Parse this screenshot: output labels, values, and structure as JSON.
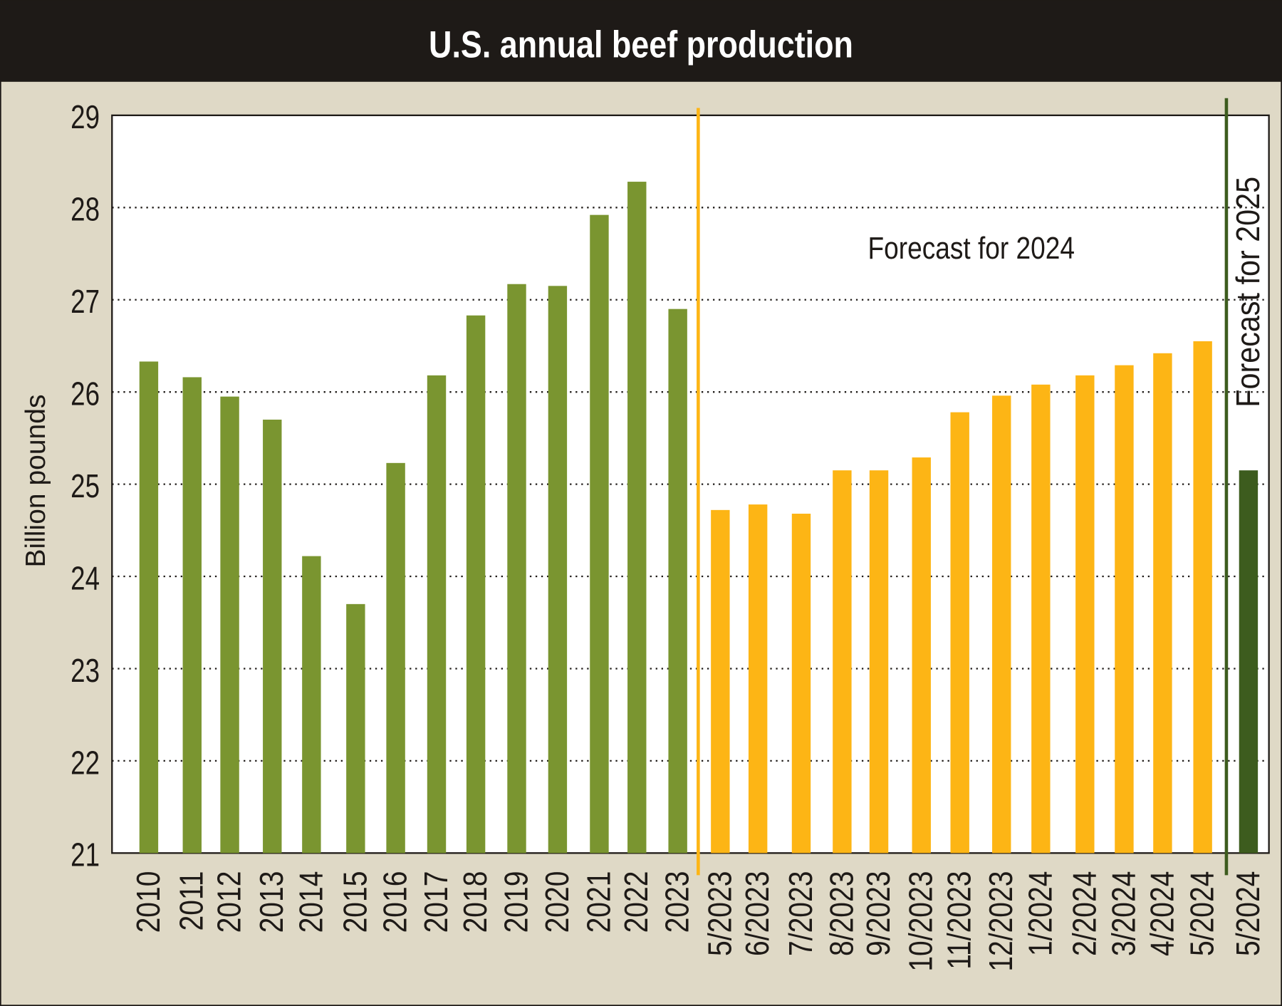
{
  "chart_data": {
    "type": "bar",
    "title": "U.S. annual beef production",
    "ylabel": "Billion pounds",
    "xlabel": "",
    "ylim": [
      21,
      29
    ],
    "yticks": [
      21,
      22,
      23,
      24,
      25,
      26,
      27,
      28,
      29
    ],
    "grid": true,
    "annotations": [
      "Forecast for 2024",
      "Forecast for 2025"
    ],
    "colors": {
      "annual": "#7a9530",
      "forecast_2024": "#fdb515",
      "forecast_2025": "#3d5c1e",
      "title_bg": "#1e1a17",
      "background": "#dfd9c6"
    },
    "categories": [
      "2010",
      "2011",
      "2012",
      "2013",
      "2014",
      "2015",
      "2016",
      "2017",
      "2018",
      "2019",
      "2020",
      "2021",
      "2022",
      "2023",
      "5/2023",
      "6/2023",
      "7/2023",
      "8/2023",
      "9/2023",
      "10/2023",
      "11/2023",
      "12/2023",
      "1/2024",
      "2/2024",
      "3/2024",
      "4/2024",
      "5/2024",
      "5/2024"
    ],
    "values": [
      26.33,
      26.16,
      25.95,
      25.7,
      24.22,
      23.7,
      25.23,
      26.18,
      26.83,
      27.17,
      27.15,
      27.92,
      28.28,
      26.9,
      24.72,
      24.78,
      24.68,
      25.15,
      25.15,
      25.29,
      25.78,
      25.96,
      26.08,
      26.18,
      26.29,
      26.42,
      26.55,
      25.15
    ],
    "groups": [
      "annual",
      "annual",
      "annual",
      "annual",
      "annual",
      "annual",
      "annual",
      "annual",
      "annual",
      "annual",
      "annual",
      "annual",
      "annual",
      "annual",
      "forecast_2024",
      "forecast_2024",
      "forecast_2024",
      "forecast_2024",
      "forecast_2024",
      "forecast_2024",
      "forecast_2024",
      "forecast_2024",
      "forecast_2024",
      "forecast_2024",
      "forecast_2024",
      "forecast_2024",
      "forecast_2024",
      "forecast_2025"
    ]
  }
}
